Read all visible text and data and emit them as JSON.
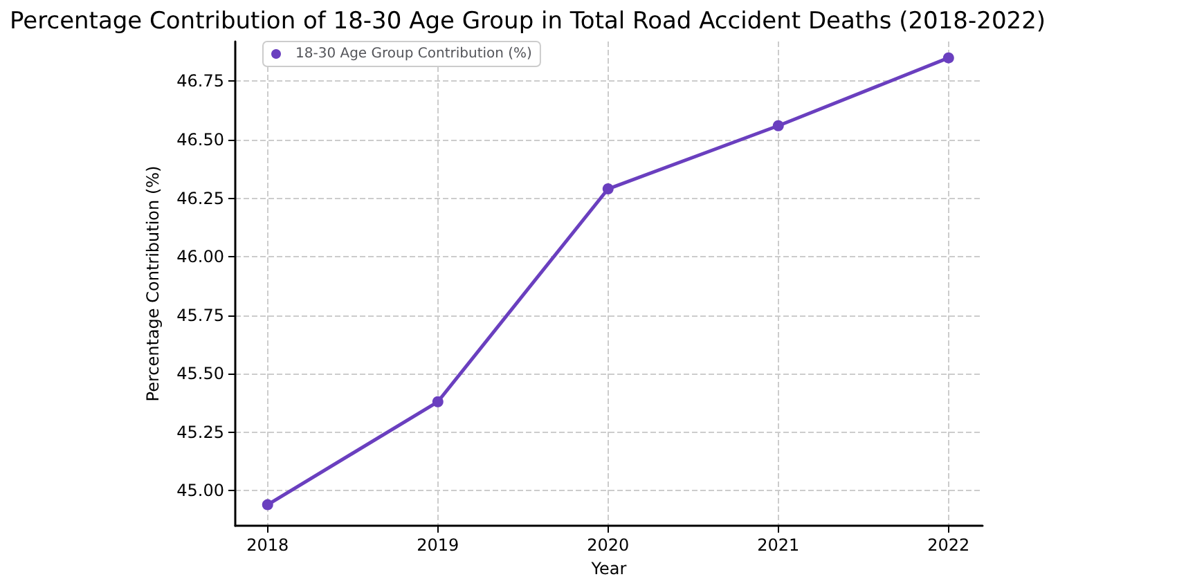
{
  "chart_data": {
    "type": "line",
    "title": "Percentage Contribution of 18-30 Age Group in Total Road Accident Deaths (2018-2022)",
    "xlabel": "Year",
    "ylabel": "Percentage Contribution (%)",
    "x": [
      2018,
      2019,
      2020,
      2021,
      2022
    ],
    "series": [
      {
        "name": "18-30 Age Group Contribution (%)",
        "color": "#6a3fbf",
        "values": [
          44.94,
          45.38,
          46.29,
          46.56,
          46.85
        ]
      }
    ],
    "xlim": [
      2017.81,
      2022.2
    ],
    "xticks": [
      2018,
      2019,
      2020,
      2021,
      2022
    ],
    "ylim": [
      44.85,
      46.92
    ],
    "yticks": [
      {
        "value": 45,
        "label": "45.00"
      },
      {
        "value": 45.25,
        "label": "45.25"
      },
      {
        "value": 45.5,
        "label": "45.50"
      },
      {
        "value": 45.75,
        "label": "45.75"
      },
      {
        "value": 46,
        "label": "46.00"
      },
      {
        "value": 46.25,
        "label": "46.25"
      },
      {
        "value": 46.5,
        "label": "46.50"
      },
      {
        "value": 46.75,
        "label": "46.75"
      }
    ],
    "grid": true,
    "legend": "top left",
    "marker": "circle",
    "line_style": "solid"
  }
}
